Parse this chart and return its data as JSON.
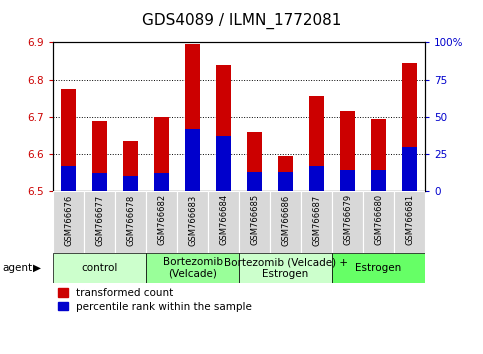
{
  "title": "GDS4089 / ILMN_1772081",
  "samples": [
    "GSM766676",
    "GSM766677",
    "GSM766678",
    "GSM766682",
    "GSM766683",
    "GSM766684",
    "GSM766685",
    "GSM766686",
    "GSM766687",
    "GSM766679",
    "GSM766680",
    "GSM766681"
  ],
  "transformed_counts": [
    6.775,
    6.69,
    6.635,
    6.7,
    6.895,
    6.84,
    6.66,
    6.595,
    6.755,
    6.715,
    6.695,
    6.845
  ],
  "percentile_ranks": [
    17,
    12,
    10,
    12,
    42,
    37,
    13,
    13,
    17,
    14,
    14,
    30
  ],
  "ylim_left": [
    6.5,
    6.9
  ],
  "ylim_right": [
    0,
    100
  ],
  "yticks_left": [
    6.5,
    6.6,
    6.7,
    6.8,
    6.9
  ],
  "yticks_right": [
    0,
    25,
    50,
    75,
    100
  ],
  "ytick_labels_right": [
    "0",
    "25",
    "50",
    "75",
    "100%"
  ],
  "groups": [
    {
      "label": "control",
      "start": 0,
      "end": 2,
      "color": "#ccffcc"
    },
    {
      "label": "Bortezomib\n(Velcade)",
      "start": 3,
      "end": 5,
      "color": "#99ff99"
    },
    {
      "label": "Bortezomib (Velcade) +\nEstrogen",
      "start": 6,
      "end": 8,
      "color": "#ccffcc"
    },
    {
      "label": "Estrogen",
      "start": 9,
      "end": 11,
      "color": "#66ff66"
    }
  ],
  "bar_color_red": "#cc0000",
  "bar_color_blue": "#0000cc",
  "bar_width": 0.5,
  "base_value": 6.5,
  "left_tick_color": "#cc0000",
  "right_tick_color": "#0000cc",
  "legend_red_label": "transformed count",
  "legend_blue_label": "percentile rank within the sample",
  "agent_label": "agent",
  "title_fontsize": 11,
  "tick_fontsize": 7.5,
  "sample_fontsize": 6.0,
  "group_label_fontsize": 7.5
}
